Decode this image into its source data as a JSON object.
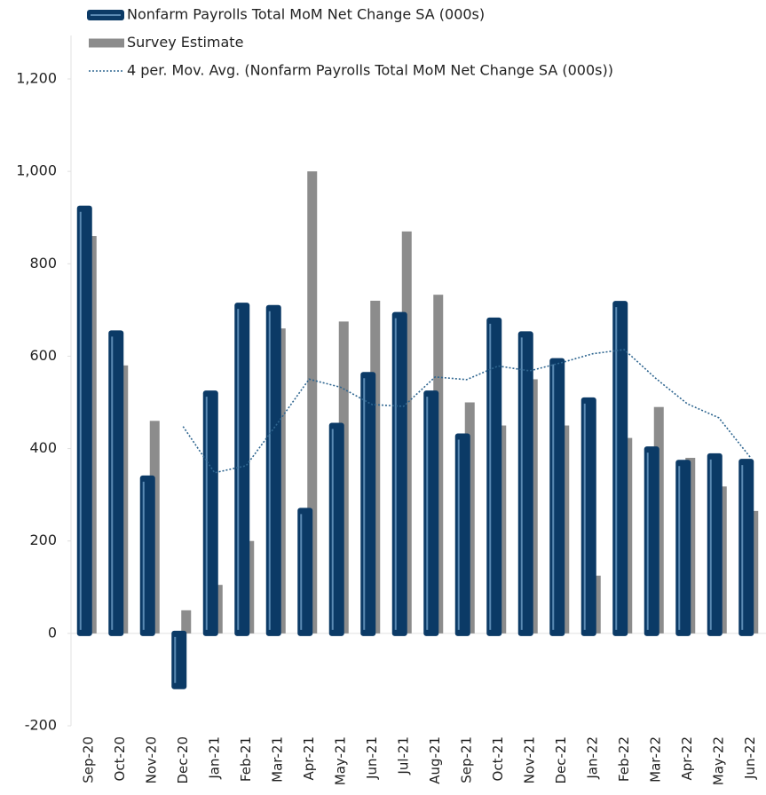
{
  "chart_data": {
    "type": "bar",
    "categories": [
      "Sep-20",
      "Oct-20",
      "Nov-20",
      "Dec-20",
      "Jan-21",
      "Feb-21",
      "Mar-21",
      "Apr-21",
      "May-21",
      "Jun-21",
      "Jul-21",
      "Aug-21",
      "Sep-21",
      "Oct-21",
      "Nov-21",
      "Dec-21",
      "Jan-22",
      "Feb-22",
      "Mar-22",
      "Apr-22",
      "May-22",
      "Jun-22"
    ],
    "series": [
      {
        "name": "Nonfarm Payrolls Total MoM Net Change SA (000s)",
        "color": "#0b3a66",
        "type": "bar",
        "values": [
          920,
          650,
          336,
          -115,
          520,
          710,
          705,
          266,
          450,
          560,
          690,
          520,
          427,
          678,
          648,
          590,
          505,
          714,
          399,
          370,
          384,
          372
        ]
      },
      {
        "name": "Survey Estimate",
        "color": "#8c8c8c",
        "type": "bar",
        "values": [
          860,
          580,
          460,
          50,
          105,
          200,
          660,
          1000,
          675,
          720,
          870,
          733,
          500,
          450,
          550,
          450,
          125,
          423,
          490,
          380,
          318,
          265
        ]
      },
      {
        "name": "4 per. Mov. Avg. (Nonfarm Payrolls Total MoM Net Change SA (000s))",
        "color": "#2f6690",
        "type": "line",
        "values": [
          null,
          null,
          null,
          447.75,
          347.75,
          362.75,
          455,
          550.25,
          532.75,
          495.25,
          491.5,
          555,
          549.25,
          578.75,
          568.25,
          585.75,
          605.25,
          614.25,
          552,
          497,
          466.75,
          381.25
        ]
      }
    ],
    "ylim": [
      -200,
      1200
    ],
    "yticks": [
      {
        "value": -200,
        "label": "-200"
      },
      0,
      200,
      400,
      600,
      800,
      {
        "value": 1000,
        "label": "1,000"
      },
      {
        "value": 1200,
        "label": "1,200"
      }
    ]
  }
}
